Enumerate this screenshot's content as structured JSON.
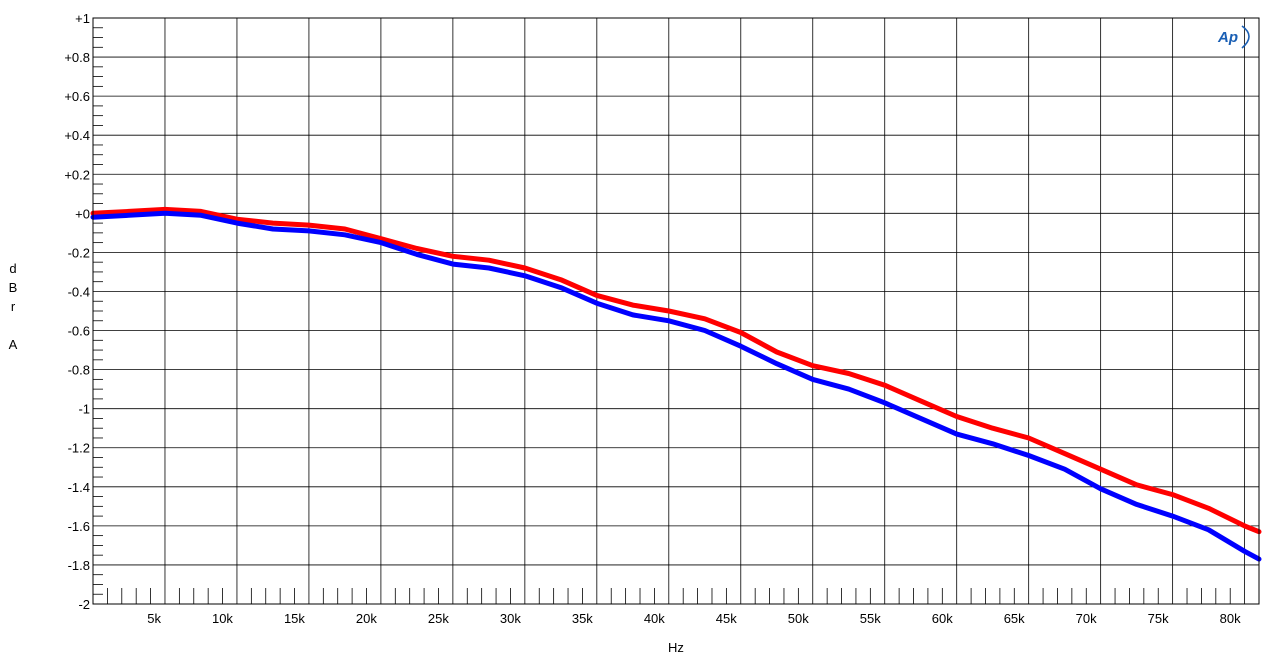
{
  "chart_data": {
    "type": "line",
    "xlabel": "Hz",
    "ylabel": [
      "d",
      "B",
      "r",
      "",
      "A"
    ],
    "xlim": [
      0,
      81000
    ],
    "ylim": [
      -2,
      1
    ],
    "x_ticks": [
      5000,
      10000,
      15000,
      20000,
      25000,
      30000,
      35000,
      40000,
      45000,
      50000,
      55000,
      60000,
      65000,
      70000,
      75000,
      80000
    ],
    "x_tick_labels": [
      "5k",
      "10k",
      "15k",
      "20k",
      "25k",
      "30k",
      "35k",
      "40k",
      "45k",
      "50k",
      "55k",
      "60k",
      "65k",
      "70k",
      "75k",
      "80k"
    ],
    "y_ticks": [
      1,
      0.8,
      0.6,
      0.4,
      0.2,
      0,
      -0.2,
      -0.4,
      -0.6,
      -0.8,
      -1,
      -1.2,
      -1.4,
      -1.6,
      -1.8,
      -2
    ],
    "y_tick_labels": [
      "+1",
      "+0.8",
      "+0.6",
      "+0.4",
      "+0.2",
      "+0",
      "-0.2",
      "-0.4",
      "-0.6",
      "-0.8",
      "-1",
      "-1.2",
      "-1.4",
      "-1.6",
      "-1.8",
      "-2"
    ],
    "grid": true,
    "logo_text": "Ap",
    "series": [
      {
        "color": "#ff0000",
        "x": [
          0,
          2500,
          5000,
          7500,
          10000,
          12500,
          15000,
          17500,
          20000,
          22500,
          25000,
          27500,
          30000,
          32500,
          35000,
          37500,
          40000,
          42500,
          45000,
          47500,
          50000,
          52500,
          55000,
          57500,
          60000,
          62500,
          65000,
          67500,
          70000,
          72500,
          75000,
          77500,
          80000,
          81000
        ],
        "values": [
          0.0,
          0.01,
          0.02,
          0.01,
          -0.03,
          -0.05,
          -0.06,
          -0.08,
          -0.13,
          -0.18,
          -0.22,
          -0.24,
          -0.28,
          -0.34,
          -0.42,
          -0.47,
          -0.5,
          -0.54,
          -0.61,
          -0.71,
          -0.78,
          -0.82,
          -0.88,
          -0.96,
          -1.04,
          -1.1,
          -1.15,
          -1.23,
          -1.31,
          -1.39,
          -1.44,
          -1.51,
          -1.6,
          -1.63
        ]
      },
      {
        "color": "#0000ff",
        "x": [
          0,
          2500,
          5000,
          7500,
          10000,
          12500,
          15000,
          17500,
          20000,
          22500,
          25000,
          27500,
          30000,
          32500,
          35000,
          37500,
          40000,
          42500,
          45000,
          47500,
          50000,
          52500,
          55000,
          57500,
          60000,
          62500,
          65000,
          67500,
          70000,
          72500,
          75000,
          77500,
          80000,
          81000
        ],
        "values": [
          -0.02,
          -0.01,
          0.0,
          -0.01,
          -0.05,
          -0.08,
          -0.09,
          -0.11,
          -0.15,
          -0.21,
          -0.26,
          -0.28,
          -0.32,
          -0.38,
          -0.46,
          -0.52,
          -0.55,
          -0.6,
          -0.68,
          -0.77,
          -0.85,
          -0.9,
          -0.97,
          -1.05,
          -1.13,
          -1.18,
          -1.24,
          -1.31,
          -1.41,
          -1.49,
          -1.55,
          -1.62,
          -1.73,
          -1.77
        ]
      }
    ]
  }
}
